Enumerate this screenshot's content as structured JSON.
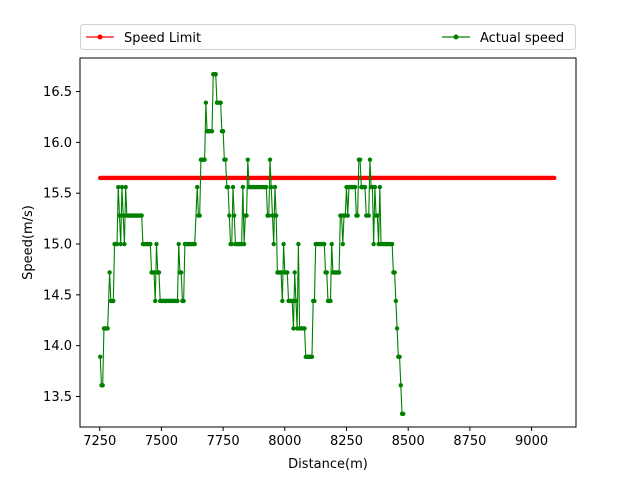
{
  "chart_data": {
    "type": "line",
    "xlabel": "Distance(m)",
    "ylabel": "Speed(m/s)",
    "xlim": [
      7170,
      9180
    ],
    "ylim": [
      13.2,
      16.83
    ],
    "xticks": [
      7250,
      7500,
      7750,
      8000,
      8250,
      8500,
      8750,
      9000
    ],
    "yticks": [
      13.5,
      14.0,
      14.5,
      15.0,
      15.5,
      16.0,
      16.5
    ],
    "xtick_labels": [
      "7250",
      "7500",
      "7750",
      "8000",
      "8250",
      "8500",
      "8750",
      "9000"
    ],
    "ytick_labels": [
      "13.5",
      "14.0",
      "14.5",
      "15.0",
      "15.5",
      "16.0",
      "16.5"
    ],
    "grid": false,
    "legend_position": "top",
    "series": [
      {
        "name": "Speed Limit",
        "color": "#ff0000",
        "marker": "circle",
        "x_start": 7252,
        "x_end": 9092,
        "x_step": 5,
        "constant_y": 15.65
      },
      {
        "name": "Actual speed",
        "color": "#008000",
        "marker": "circle",
        "points": [
          [
            7252,
            13.89
          ],
          [
            7257,
            13.61
          ],
          [
            7262,
            13.61
          ],
          [
            7267,
            14.17
          ],
          [
            7272,
            14.17
          ],
          [
            7277,
            14.17
          ],
          [
            7282,
            14.17
          ],
          [
            7290,
            14.72
          ],
          [
            7295,
            14.44
          ],
          [
            7300,
            14.44
          ],
          [
            7305,
            14.44
          ],
          [
            7310,
            15.0
          ],
          [
            7315,
            15.0
          ],
          [
            7320,
            15.0
          ],
          [
            7325,
            15.56
          ],
          [
            7330,
            15.28
          ],
          [
            7335,
            15.0
          ],
          [
            7340,
            15.56
          ],
          [
            7345,
            15.28
          ],
          [
            7350,
            15.0
          ],
          [
            7355,
            15.56
          ],
          [
            7360,
            15.28
          ],
          [
            7365,
            15.28
          ],
          [
            7370,
            15.28
          ],
          [
            7375,
            15.28
          ],
          [
            7380,
            15.28
          ],
          [
            7385,
            15.28
          ],
          [
            7390,
            15.28
          ],
          [
            7395,
            15.28
          ],
          [
            7400,
            15.28
          ],
          [
            7405,
            15.28
          ],
          [
            7410,
            15.28
          ],
          [
            7415,
            15.28
          ],
          [
            7420,
            15.28
          ],
          [
            7425,
            15.0
          ],
          [
            7430,
            15.0
          ],
          [
            7435,
            15.0
          ],
          [
            7440,
            15.0
          ],
          [
            7445,
            15.0
          ],
          [
            7450,
            15.0
          ],
          [
            7455,
            15.0
          ],
          [
            7460,
            14.72
          ],
          [
            7465,
            14.72
          ],
          [
            7470,
            14.72
          ],
          [
            7475,
            14.44
          ],
          [
            7480,
            15.0
          ],
          [
            7485,
            14.72
          ],
          [
            7490,
            14.72
          ],
          [
            7495,
            14.44
          ],
          [
            7500,
            14.44
          ],
          [
            7505,
            14.44
          ],
          [
            7510,
            14.44
          ],
          [
            7515,
            14.44
          ],
          [
            7520,
            14.44
          ],
          [
            7525,
            14.44
          ],
          [
            7530,
            14.44
          ],
          [
            7535,
            14.44
          ],
          [
            7540,
            14.44
          ],
          [
            7545,
            14.44
          ],
          [
            7550,
            14.44
          ],
          [
            7555,
            14.44
          ],
          [
            7560,
            14.44
          ],
          [
            7565,
            14.44
          ],
          [
            7570,
            15.0
          ],
          [
            7575,
            14.72
          ],
          [
            7580,
            14.72
          ],
          [
            7585,
            14.44
          ],
          [
            7590,
            14.44
          ],
          [
            7595,
            15.0
          ],
          [
            7600,
            15.0
          ],
          [
            7605,
            15.0
          ],
          [
            7610,
            15.0
          ],
          [
            7615,
            15.0
          ],
          [
            7620,
            15.0
          ],
          [
            7625,
            15.0
          ],
          [
            7630,
            15.0
          ],
          [
            7635,
            15.0
          ],
          [
            7645,
            15.56
          ],
          [
            7650,
            15.28
          ],
          [
            7655,
            15.28
          ],
          [
            7660,
            15.83
          ],
          [
            7665,
            15.83
          ],
          [
            7670,
            15.83
          ],
          [
            7675,
            15.83
          ],
          [
            7680,
            16.39
          ],
          [
            7685,
            16.11
          ],
          [
            7690,
            16.11
          ],
          [
            7695,
            16.11
          ],
          [
            7700,
            16.11
          ],
          [
            7705,
            16.11
          ],
          [
            7710,
            16.67
          ],
          [
            7715,
            16.67
          ],
          [
            7720,
            16.67
          ],
          [
            7725,
            16.39
          ],
          [
            7730,
            16.39
          ],
          [
            7735,
            16.39
          ],
          [
            7740,
            16.39
          ],
          [
            7745,
            16.11
          ],
          [
            7750,
            16.11
          ],
          [
            7755,
            15.83
          ],
          [
            7760,
            15.83
          ],
          [
            7765,
            15.56
          ],
          [
            7770,
            15.56
          ],
          [
            7775,
            15.28
          ],
          [
            7780,
            15.0
          ],
          [
            7785,
            15.0
          ],
          [
            7790,
            15.56
          ],
          [
            7795,
            15.28
          ],
          [
            7800,
            15.0
          ],
          [
            7805,
            15.0
          ],
          [
            7810,
            15.0
          ],
          [
            7815,
            15.0
          ],
          [
            7820,
            15.0
          ],
          [
            7825,
            15.0
          ],
          [
            7830,
            15.56
          ],
          [
            7835,
            15.0
          ],
          [
            7840,
            15.28
          ],
          [
            7845,
            15.28
          ],
          [
            7850,
            15.83
          ],
          [
            7855,
            15.56
          ],
          [
            7860,
            15.56
          ],
          [
            7865,
            15.56
          ],
          [
            7870,
            15.56
          ],
          [
            7875,
            15.56
          ],
          [
            7880,
            15.56
          ],
          [
            7885,
            15.56
          ],
          [
            7890,
            15.56
          ],
          [
            7895,
            15.56
          ],
          [
            7900,
            15.56
          ],
          [
            7905,
            15.56
          ],
          [
            7910,
            15.56
          ],
          [
            7915,
            15.56
          ],
          [
            7920,
            15.56
          ],
          [
            7925,
            15.56
          ],
          [
            7930,
            15.28
          ],
          [
            7935,
            15.28
          ],
          [
            7940,
            15.83
          ],
          [
            7945,
            15.56
          ],
          [
            7950,
            15.28
          ],
          [
            7955,
            15.0
          ],
          [
            7960,
            15.56
          ],
          [
            7965,
            15.28
          ],
          [
            7970,
            14.72
          ],
          [
            7975,
            14.72
          ],
          [
            7980,
            14.72
          ],
          [
            7985,
            14.72
          ],
          [
            7990,
            14.44
          ],
          [
            7995,
            15.0
          ],
          [
            8000,
            14.72
          ],
          [
            8005,
            14.72
          ],
          [
            8010,
            14.72
          ],
          [
            8015,
            14.44
          ],
          [
            8020,
            14.44
          ],
          [
            8025,
            14.44
          ],
          [
            8030,
            14.44
          ],
          [
            8035,
            14.17
          ],
          [
            8040,
            14.72
          ],
          [
            8045,
            14.44
          ],
          [
            8050,
            14.17
          ],
          [
            8055,
            15.0
          ],
          [
            8060,
            14.17
          ],
          [
            8065,
            14.17
          ],
          [
            8070,
            14.17
          ],
          [
            8075,
            14.17
          ],
          [
            8080,
            14.17
          ],
          [
            8085,
            13.89
          ],
          [
            8090,
            13.89
          ],
          [
            8095,
            13.89
          ],
          [
            8100,
            13.89
          ],
          [
            8105,
            13.89
          ],
          [
            8110,
            13.89
          ],
          [
            8115,
            14.44
          ],
          [
            8120,
            14.44
          ],
          [
            8125,
            15.0
          ],
          [
            8130,
            15.0
          ],
          [
            8135,
            15.0
          ],
          [
            8140,
            15.0
          ],
          [
            8145,
            15.0
          ],
          [
            8150,
            15.0
          ],
          [
            8155,
            15.0
          ],
          [
            8160,
            15.0
          ],
          [
            8165,
            14.72
          ],
          [
            8170,
            14.72
          ],
          [
            8175,
            14.44
          ],
          [
            8180,
            14.44
          ],
          [
            8185,
            14.44
          ],
          [
            8190,
            15.0
          ],
          [
            8195,
            14.72
          ],
          [
            8200,
            14.72
          ],
          [
            8205,
            14.72
          ],
          [
            8210,
            14.72
          ],
          [
            8215,
            14.72
          ],
          [
            8220,
            14.72
          ],
          [
            8225,
            15.28
          ],
          [
            8230,
            15.28
          ],
          [
            8235,
            15.0
          ],
          [
            8240,
            15.28
          ],
          [
            8245,
            15.28
          ],
          [
            8250,
            15.56
          ],
          [
            8255,
            15.28
          ],
          [
            8260,
            15.56
          ],
          [
            8265,
            15.56
          ],
          [
            8270,
            15.56
          ],
          [
            8275,
            15.56
          ],
          [
            8280,
            15.56
          ],
          [
            8285,
            15.56
          ],
          [
            8290,
            15.28
          ],
          [
            8295,
            15.28
          ],
          [
            8300,
            15.83
          ],
          [
            8305,
            15.83
          ],
          [
            8310,
            15.56
          ],
          [
            8315,
            15.56
          ],
          [
            8320,
            15.56
          ],
          [
            8325,
            15.56
          ],
          [
            8330,
            15.28
          ],
          [
            8335,
            15.28
          ],
          [
            8340,
            15.28
          ],
          [
            8345,
            15.83
          ],
          [
            8350,
            15.56
          ],
          [
            8355,
            15.56
          ],
          [
            8360,
            15.0
          ],
          [
            8365,
            15.56
          ],
          [
            8370,
            15.28
          ],
          [
            8375,
            15.28
          ],
          [
            8380,
            15.0
          ],
          [
            8385,
            15.56
          ],
          [
            8390,
            15.0
          ],
          [
            8395,
            15.0
          ],
          [
            8400,
            15.0
          ],
          [
            8405,
            15.0
          ],
          [
            8410,
            15.0
          ],
          [
            8415,
            15.0
          ],
          [
            8420,
            15.0
          ],
          [
            8425,
            15.0
          ],
          [
            8430,
            15.0
          ],
          [
            8435,
            15.0
          ],
          [
            8440,
            14.72
          ],
          [
            8445,
            14.72
          ],
          [
            8450,
            14.44
          ],
          [
            8455,
            14.17
          ],
          [
            8460,
            13.89
          ],
          [
            8465,
            13.89
          ],
          [
            8470,
            13.61
          ],
          [
            8475,
            13.33
          ],
          [
            8480,
            13.33
          ]
        ]
      }
    ]
  }
}
